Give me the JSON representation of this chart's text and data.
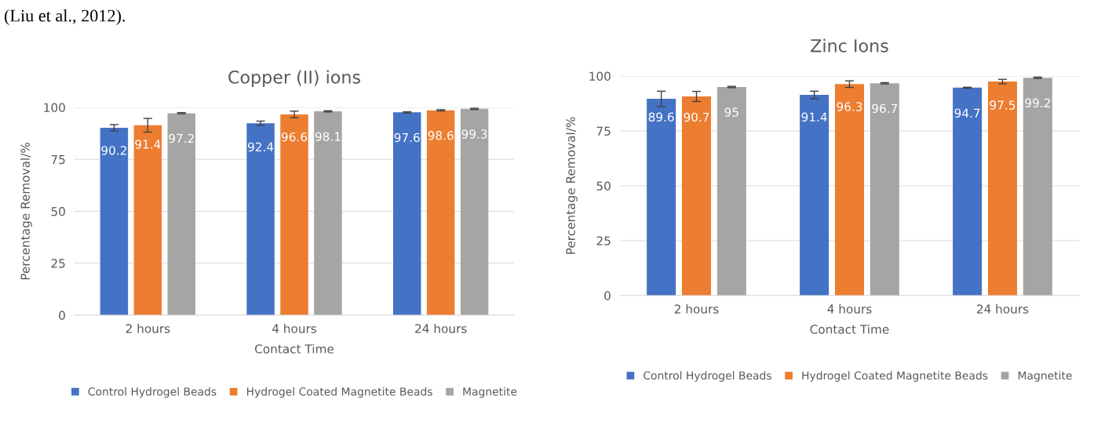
{
  "chart_data": [
    {
      "type": "bar",
      "title": "Copper (II) ions",
      "xlabel": "Contact Time",
      "ylabel": "Percentage Removal/%",
      "categories": [
        "2 hours",
        "4 hours",
        "24 hours"
      ],
      "series": [
        {
          "name": "Control Hydrogel Beads",
          "color": "#4472c4",
          "values": [
            90.2,
            92.4,
            97.6
          ],
          "errors": [
            1.5,
            1.0,
            0.3
          ]
        },
        {
          "name": "Hydrogel Coated Magnetite Beads",
          "color": "#ed7d31",
          "values": [
            91.4,
            96.6,
            98.6
          ],
          "errors": [
            3.3,
            1.6,
            0.3
          ]
        },
        {
          "name": "Magnetite",
          "color": "#a5a5a5",
          "values": [
            97.2,
            98.1,
            99.3
          ],
          "errors": [
            0.3,
            0.3,
            0.3
          ]
        }
      ],
      "ylim": [
        0,
        100
      ],
      "yticks": [
        0,
        25,
        50,
        75,
        100
      ],
      "grid": "y",
      "legend": "bottom",
      "data_labels": true,
      "annotations": [
        "(Liu et al., 2012)."
      ]
    },
    {
      "type": "bar",
      "title": "Zinc Ions",
      "xlabel": "Contact Time",
      "ylabel": "Percentage Removal/%",
      "categories": [
        "2 hours",
        "4 hours",
        "24 hours"
      ],
      "series": [
        {
          "name": "Control Hydrogel Beads",
          "color": "#4472c4",
          "values": [
            89.6,
            91.4,
            94.7
          ],
          "errors": [
            3.5,
            1.7,
            0.2
          ]
        },
        {
          "name": "Hydrogel Coated Magnetite Beads",
          "color": "#ed7d31",
          "values": [
            90.7,
            96.3,
            97.5
          ],
          "errors": [
            2.3,
            1.5,
            1.0
          ]
        },
        {
          "name": "Magnetite",
          "color": "#a5a5a5",
          "values": [
            95,
            96.7,
            99.2
          ],
          "errors": [
            0.3,
            0.3,
            0.3
          ]
        }
      ],
      "ylim": [
        0,
        100
      ],
      "yticks": [
        0,
        25,
        50,
        75,
        100
      ],
      "grid": "y",
      "legend": "bottom",
      "data_labels": true
    }
  ]
}
